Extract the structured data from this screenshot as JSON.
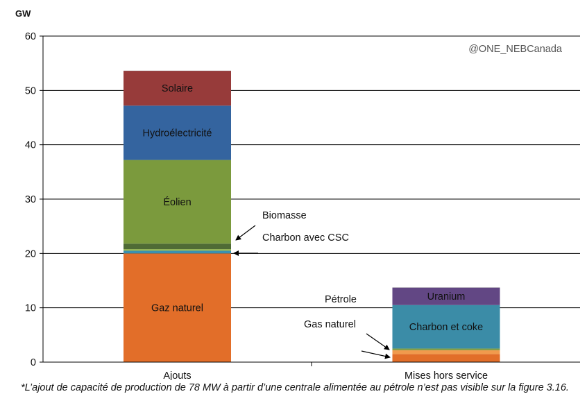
{
  "chart_data": {
    "type": "bar",
    "stacked": true,
    "ylabel": "GW",
    "ylim": [
      0,
      60
    ],
    "yticks": [
      0,
      10,
      20,
      30,
      40,
      50,
      60
    ],
    "grid": true,
    "watermark": "@ONE_NEBCanada",
    "categories": [
      "Ajouts",
      "Mises hors service"
    ],
    "groups": [
      {
        "category": "Ajouts",
        "segments": [
          {
            "name": "Gaz naturel",
            "value": 20.0,
            "color": "#e26e29",
            "label": "Gaz naturel"
          },
          {
            "name": "Charbon avec CSC",
            "value": 0.5,
            "color": "#3a91b0",
            "label": ""
          },
          {
            "name": "",
            "value": 0.3,
            "color": "#92b451",
            "label": ""
          },
          {
            "name": "Biomasse",
            "value": 1.0,
            "color": "#4f6b35",
            "label": ""
          },
          {
            "name": "Éolien",
            "value": 15.4,
            "color": "#7b9a3d",
            "label": "Éolien"
          },
          {
            "name": "Hydroélectricité",
            "value": 10.0,
            "color": "#34649f",
            "label": "Hydroélectricité"
          },
          {
            "name": "Solaire",
            "value": 6.4,
            "color": "#973b3a",
            "label": "Solaire"
          }
        ]
      },
      {
        "category": "Mises hors service",
        "segments": [
          {
            "name": "Gas naturel",
            "value": 1.5,
            "color": "#e26e29",
            "label": ""
          },
          {
            "name": "",
            "value": 0.7,
            "color": "#f19a4d",
            "label": ""
          },
          {
            "name": "Pétrole",
            "value": 0.3,
            "color": "#7a9a40",
            "label": ""
          },
          {
            "name": "Charbon et coke",
            "value": 8.0,
            "color": "#3b8ca7",
            "label": "Charbon et coke"
          },
          {
            "name": "Uranium",
            "value": 3.2,
            "color": "#624784",
            "label": "Uranium"
          }
        ]
      }
    ],
    "annotations": [
      {
        "text": "Biomasse"
      },
      {
        "text": "Charbon avec CSC"
      },
      {
        "text": "Pétrole"
      },
      {
        "text": "Gas naturel"
      }
    ]
  },
  "footnote": "*L’ajout de capacité de production de 78 MW à partir d’une centrale alimentée au pétrole n’est pas visible sur la figure 3.16."
}
